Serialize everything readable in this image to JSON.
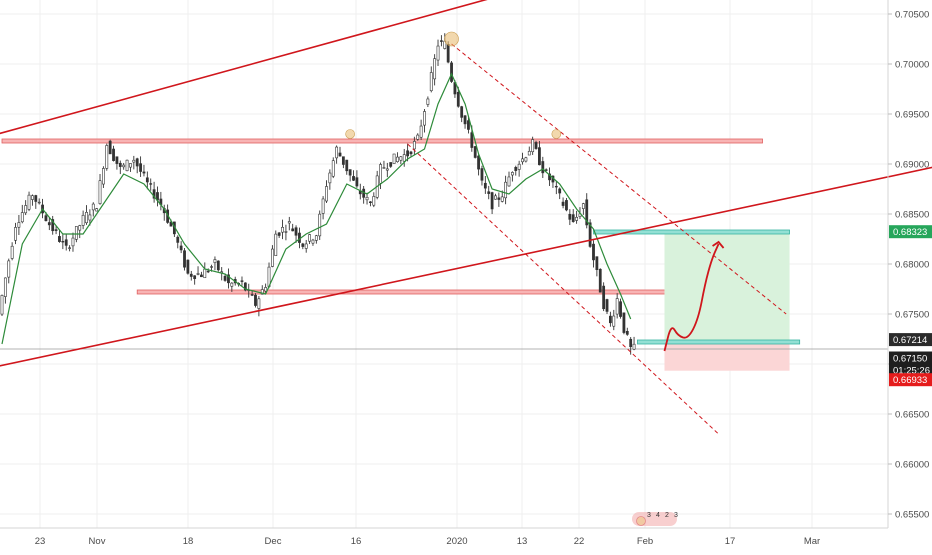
{
  "chart_data": {
    "type": "candlestick",
    "title": "",
    "xlabel": "",
    "ylabel": "",
    "ylim": [
      0.6535,
      0.706
    ],
    "x_ticks": [
      "23",
      "Nov",
      "18",
      "Dec",
      "16",
      "2020",
      "13",
      "22",
      "Feb",
      "17",
      "Mar"
    ],
    "y_ticks": [
      "0.70500",
      "0.70000",
      "0.69500",
      "0.69000",
      "0.68500",
      "0.68000",
      "0.67500",
      "0.67000",
      "0.66500",
      "0.66000",
      "0.65500"
    ],
    "price_labels": {
      "target": "0.68323",
      "entry": "0.67214",
      "current": "0.67150",
      "countdown": "01:25:26",
      "stop": "0.66933"
    },
    "series_points": [
      {
        "d": 0,
        "v": 0.675
      },
      {
        "d": 5,
        "v": 0.684
      },
      {
        "d": 10,
        "v": 0.687
      },
      {
        "d": 15,
        "v": 0.684
      },
      {
        "d": 20,
        "v": 0.6815
      },
      {
        "d": 25,
        "v": 0.6845
      },
      {
        "d": 29,
        "v": 0.686
      },
      {
        "d": 32,
        "v": 0.692
      },
      {
        "d": 36,
        "v": 0.6895
      },
      {
        "d": 40,
        "v": 0.6905
      },
      {
        "d": 44,
        "v": 0.688
      },
      {
        "d": 48,
        "v": 0.686
      },
      {
        "d": 52,
        "v": 0.683
      },
      {
        "d": 56,
        "v": 0.679
      },
      {
        "d": 60,
        "v": 0.679
      },
      {
        "d": 64,
        "v": 0.68
      },
      {
        "d": 68,
        "v": 0.678
      },
      {
        "d": 72,
        "v": 0.678
      },
      {
        "d": 76,
        "v": 0.676
      },
      {
        "d": 79,
        "v": 0.678
      },
      {
        "d": 82,
        "v": 0.683
      },
      {
        "d": 86,
        "v": 0.684
      },
      {
        "d": 90,
        "v": 0.682
      },
      {
        "d": 94,
        "v": 0.683
      },
      {
        "d": 97,
        "v": 0.688
      },
      {
        "d": 100,
        "v": 0.6915
      },
      {
        "d": 103,
        "v": 0.6895
      },
      {
        "d": 106,
        "v": 0.6875
      },
      {
        "d": 110,
        "v": 0.686
      },
      {
        "d": 113,
        "v": 0.6895
      },
      {
        "d": 117,
        "v": 0.6905
      },
      {
        "d": 121,
        "v": 0.691
      },
      {
        "d": 124,
        "v": 0.6925
      },
      {
        "d": 127,
        "v": 0.697
      },
      {
        "d": 130,
        "v": 0.702
      },
      {
        "d": 132,
        "v": 0.702
      },
      {
        "d": 134,
        "v": 0.6985
      },
      {
        "d": 137,
        "v": 0.695
      },
      {
        "d": 140,
        "v": 0.692
      },
      {
        "d": 143,
        "v": 0.688
      },
      {
        "d": 146,
        "v": 0.686
      },
      {
        "d": 149,
        "v": 0.687
      },
      {
        "d": 152,
        "v": 0.6895
      },
      {
        "d": 155,
        "v": 0.6905
      },
      {
        "d": 158,
        "v": 0.692
      },
      {
        "d": 161,
        "v": 0.6895
      },
      {
        "d": 164,
        "v": 0.688
      },
      {
        "d": 167,
        "v": 0.686
      },
      {
        "d": 170,
        "v": 0.684
      },
      {
        "d": 173,
        "v": 0.686
      },
      {
        "d": 175,
        "v": 0.682
      },
      {
        "d": 177,
        "v": 0.679
      },
      {
        "d": 179,
        "v": 0.676
      },
      {
        "d": 181,
        "v": 0.674
      },
      {
        "d": 183,
        "v": 0.6765
      },
      {
        "d": 185,
        "v": 0.6735
      },
      {
        "d": 187,
        "v": 0.6715
      }
    ],
    "ma_points": [
      {
        "d": 0,
        "v": 0.672
      },
      {
        "d": 6,
        "v": 0.682
      },
      {
        "d": 12,
        "v": 0.6855
      },
      {
        "d": 18,
        "v": 0.683
      },
      {
        "d": 24,
        "v": 0.683
      },
      {
        "d": 30,
        "v": 0.686
      },
      {
        "d": 36,
        "v": 0.689
      },
      {
        "d": 42,
        "v": 0.688
      },
      {
        "d": 48,
        "v": 0.6855
      },
      {
        "d": 54,
        "v": 0.682
      },
      {
        "d": 60,
        "v": 0.6795
      },
      {
        "d": 66,
        "v": 0.679
      },
      {
        "d": 72,
        "v": 0.6775
      },
      {
        "d": 78,
        "v": 0.677
      },
      {
        "d": 84,
        "v": 0.6815
      },
      {
        "d": 90,
        "v": 0.683
      },
      {
        "d": 96,
        "v": 0.684
      },
      {
        "d": 102,
        "v": 0.688
      },
      {
        "d": 108,
        "v": 0.687
      },
      {
        "d": 114,
        "v": 0.6885
      },
      {
        "d": 120,
        "v": 0.6905
      },
      {
        "d": 125,
        "v": 0.6915
      },
      {
        "d": 129,
        "v": 0.696
      },
      {
        "d": 133,
        "v": 0.699
      },
      {
        "d": 137,
        "v": 0.696
      },
      {
        "d": 141,
        "v": 0.691
      },
      {
        "d": 145,
        "v": 0.6875
      },
      {
        "d": 150,
        "v": 0.687
      },
      {
        "d": 155,
        "v": 0.6885
      },
      {
        "d": 160,
        "v": 0.6895
      },
      {
        "d": 165,
        "v": 0.688
      },
      {
        "d": 170,
        "v": 0.6855
      },
      {
        "d": 175,
        "v": 0.6835
      },
      {
        "d": 179,
        "v": 0.68
      },
      {
        "d": 183,
        "v": 0.677
      },
      {
        "d": 186,
        "v": 0.6745
      }
    ],
    "channel_upper": [
      {
        "d": -12,
        "v": 0.692
      },
      {
        "d": 160,
        "v": 0.708
      }
    ],
    "channel_lower": [
      {
        "d": -12,
        "v": 0.669
      },
      {
        "d": 280,
        "v": 0.69
      }
    ],
    "descending_lines": [
      [
        {
          "d": 133,
          "v": 0.702
        },
        {
          "d": 232,
          "v": 0.675
        }
      ],
      [
        {
          "d": 120,
          "v": 0.692
        },
        {
          "d": 212,
          "v": 0.663
        }
      ]
    ],
    "resistance_zones": [
      {
        "from": 0,
        "to": 225,
        "top": 0.6925,
        "bottom": 0.6921
      },
      {
        "from": 40,
        "to": 232,
        "top": 0.6774,
        "bottom": 0.677
      }
    ],
    "cyan_zones": [
      {
        "from": 175,
        "to": 233,
        "top": 0.6834,
        "bottom": 0.683
      },
      {
        "from": 188,
        "to": 236,
        "top": 0.6724,
        "bottom": 0.672
      }
    ],
    "target_box": {
      "from": 196,
      "to": 233,
      "top": 0.68323,
      "bottom": 0.67214
    },
    "stop_box": {
      "from": 196,
      "to": 233,
      "top": 0.67214,
      "bottom": 0.66933
    },
    "forecast_path": [
      {
        "d": 196,
        "v": 0.6713
      },
      {
        "d": 198,
        "v": 0.674
      },
      {
        "d": 200,
        "v": 0.6728
      },
      {
        "d": 203,
        "v": 0.6725
      },
      {
        "d": 206,
        "v": 0.6745
      },
      {
        "d": 208,
        "v": 0.678
      },
      {
        "d": 210,
        "v": 0.6805
      },
      {
        "d": 212,
        "v": 0.682
      }
    ],
    "swing_markers": [
      {
        "d": 133,
        "v": 0.7025
      },
      {
        "d": 103,
        "v": 0.693
      },
      {
        "d": 164,
        "v": 0.693
      }
    ],
    "event_icons": [
      "3",
      "4",
      "2",
      "3"
    ],
    "colors": {
      "candle": "#333333",
      "ma": "#2e8b3a",
      "trendline": "#d0161c",
      "resistance_fill": "#f8b4b4",
      "resistance_stroke": "#e06060",
      "cyan_fill": "#93e0d4",
      "cyan_stroke": "#39b5a1",
      "target_fill": "#d9f2dc",
      "stop_fill": "#fbd6d6",
      "target_label": "#26a65b",
      "stop_label": "#e51c1c",
      "current_label": "#1e1e1e",
      "entry_label": "#2b2b2b",
      "marker": "#e7b86a",
      "axis_text": "#4a4a4a",
      "grid": "#efefef"
    }
  }
}
